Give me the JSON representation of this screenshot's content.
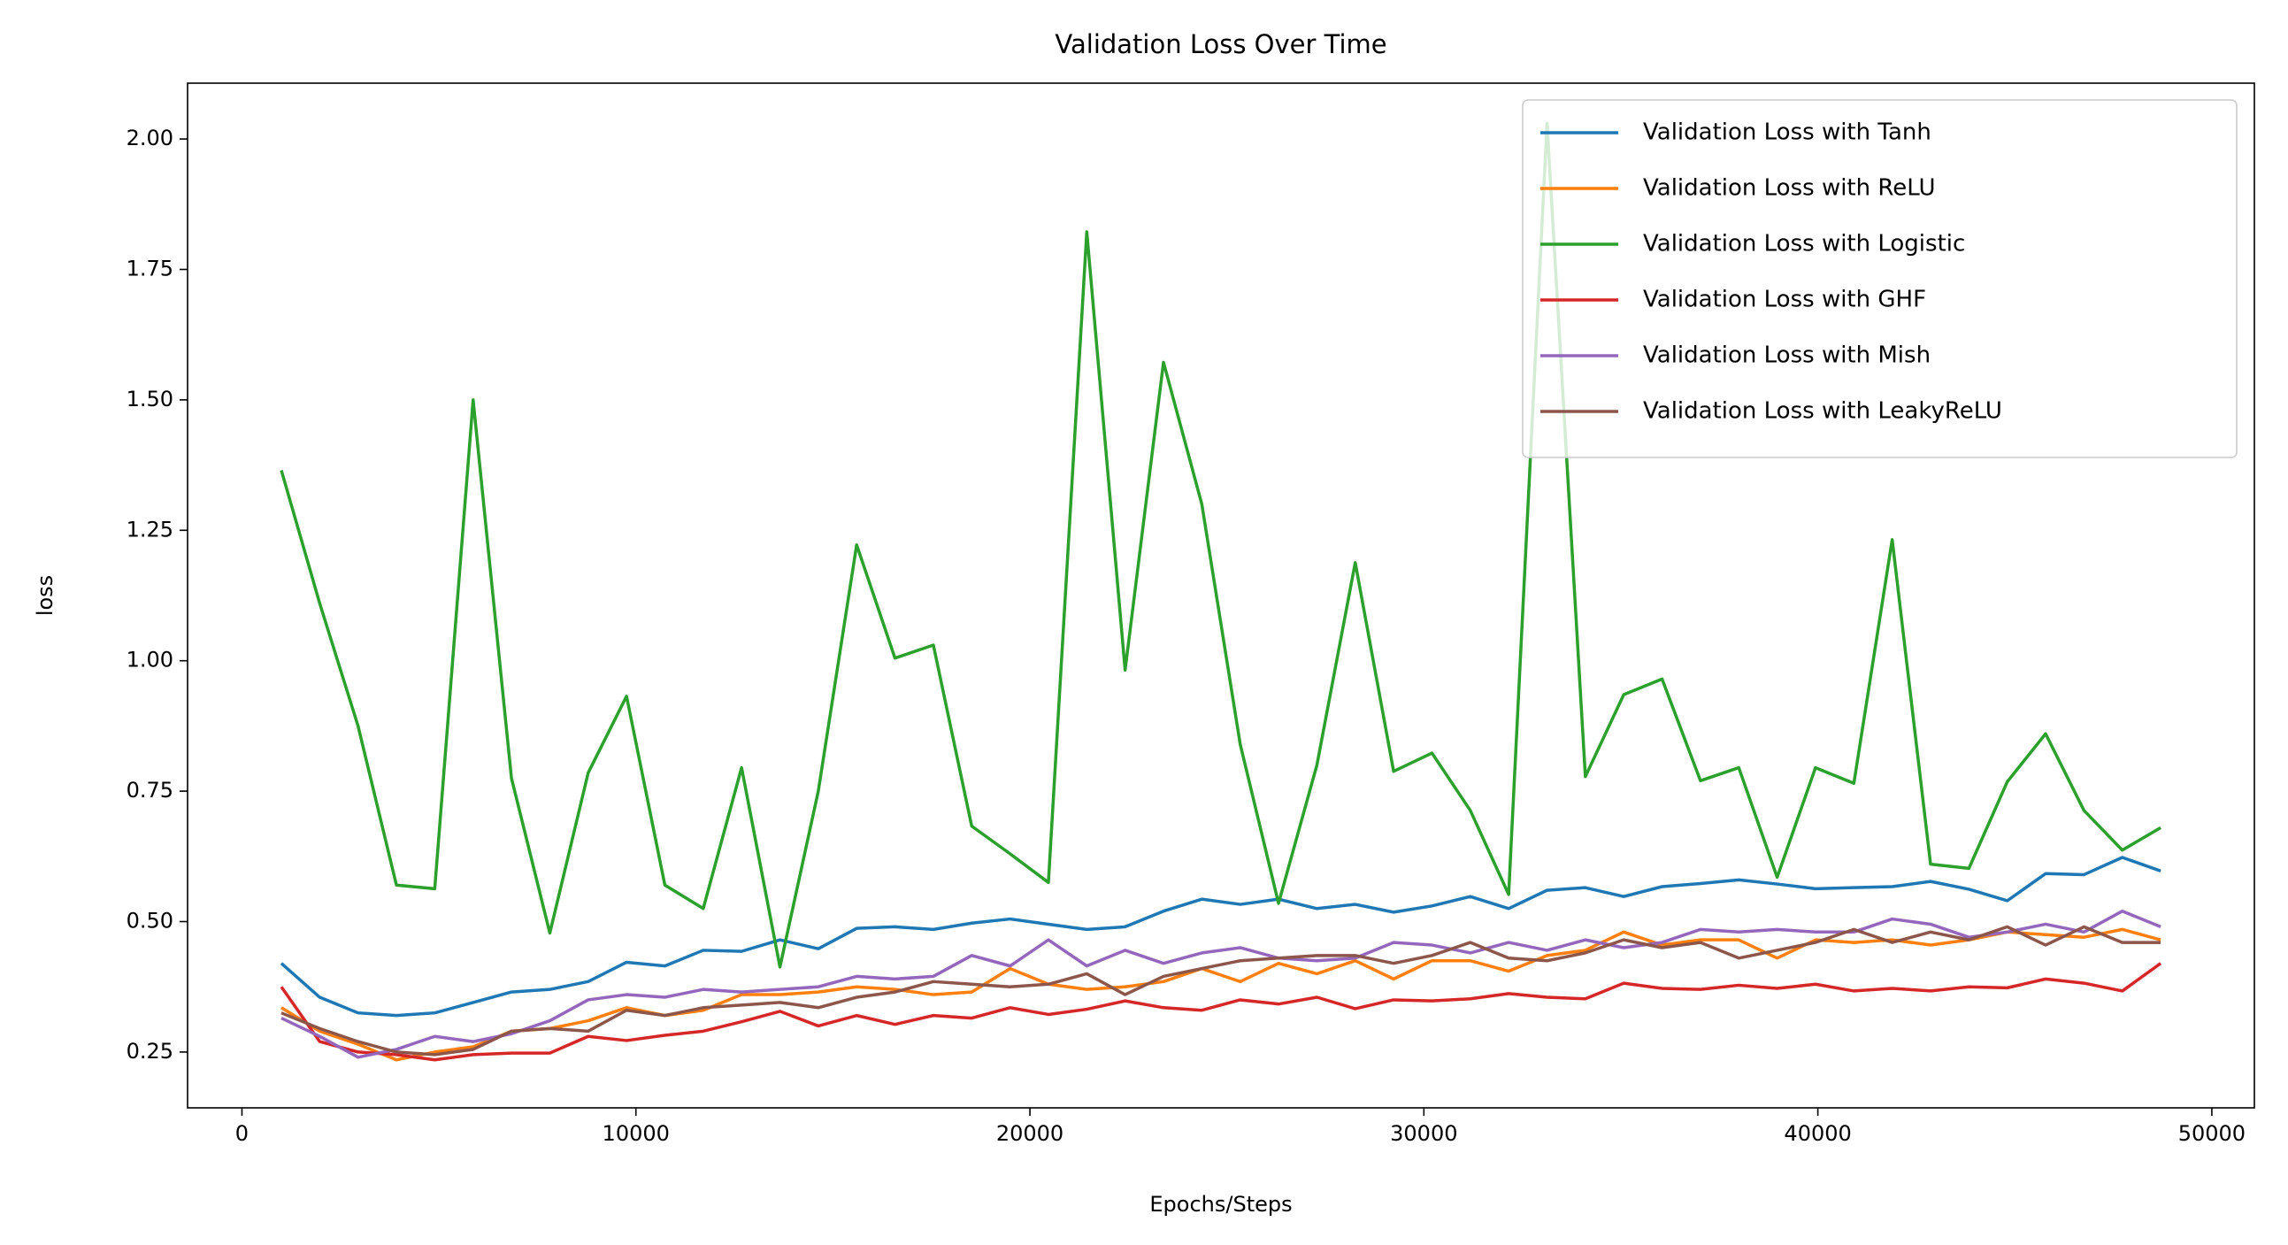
{
  "chart_data": {
    "type": "line",
    "title": "Validation Loss Over Time",
    "x_label": "Epochs/Steps",
    "y_label": "loss",
    "x": [
      1000,
      1974,
      2947,
      3921,
      4894,
      5868,
      6841,
      7815,
      8788,
      9762,
      10735,
      11709,
      12682,
      13656,
      14629,
      15603,
      16576,
      17550,
      18523,
      19497,
      20470,
      21444,
      22417,
      23391,
      24364,
      25338,
      26311,
      27285,
      28258,
      29232,
      30205,
      31179,
      32152,
      33126,
      34099,
      35073,
      36046,
      37020,
      37993,
      38967,
      39940,
      40914,
      41887,
      42861,
      43834,
      44808,
      45781,
      46755,
      47728,
      48702
    ],
    "series": [
      {
        "name": "Validation Loss with Tanh",
        "color": "#1f77b4",
        "values": [
          0.42,
          0.355,
          0.325,
          0.32,
          0.325,
          0.345,
          0.365,
          0.37,
          0.385,
          0.422,
          0.415,
          0.445,
          0.443,
          0.465,
          0.448,
          0.487,
          0.49,
          0.485,
          0.497,
          0.505,
          0.495,
          0.485,
          0.49,
          0.52,
          0.543,
          0.533,
          0.543,
          0.525,
          0.533,
          0.518,
          0.53,
          0.548,
          0.525,
          0.56,
          0.565,
          0.548,
          0.567,
          0.573,
          0.58,
          0.572,
          0.563,
          0.565,
          0.567,
          0.577,
          0.562,
          0.54,
          0.592,
          0.59,
          0.623,
          0.597
        ]
      },
      {
        "name": "Validation Loss with ReLU",
        "color": "#ff7f0e",
        "values": [
          0.335,
          0.29,
          0.265,
          0.235,
          0.25,
          0.26,
          0.29,
          0.295,
          0.31,
          0.335,
          0.32,
          0.33,
          0.36,
          0.36,
          0.365,
          0.375,
          0.37,
          0.36,
          0.365,
          0.41,
          0.38,
          0.37,
          0.375,
          0.385,
          0.41,
          0.385,
          0.42,
          0.4,
          0.425,
          0.39,
          0.425,
          0.425,
          0.405,
          0.435,
          0.445,
          0.48,
          0.455,
          0.465,
          0.465,
          0.43,
          0.465,
          0.46,
          0.465,
          0.455,
          0.465,
          0.48,
          0.475,
          0.47,
          0.485,
          0.465
        ]
      },
      {
        "name": "Validation Loss with Logistic",
        "color": "#2ca02c",
        "values": [
          1.365,
          1.11,
          0.875,
          0.57,
          0.563,
          1.5,
          0.775,
          0.478,
          0.785,
          0.932,
          0.57,
          0.525,
          0.795,
          0.413,
          0.75,
          1.222,
          1.005,
          1.03,
          0.683,
          0.63,
          0.575,
          1.822,
          0.982,
          1.572,
          1.3,
          0.84,
          0.535,
          0.8,
          1.188,
          0.788,
          0.823,
          0.713,
          0.552,
          2.03,
          0.778,
          0.935,
          0.965,
          0.77,
          0.795,
          0.585,
          0.795,
          0.765,
          1.232,
          0.61,
          0.602,
          0.768,
          0.86,
          0.713,
          0.637,
          0.68
        ]
      },
      {
        "name": "Validation Loss with GHF",
        "color": "#d62728",
        "values": [
          0.375,
          0.27,
          0.25,
          0.245,
          0.235,
          0.245,
          0.248,
          0.248,
          0.28,
          0.272,
          0.282,
          0.29,
          0.308,
          0.328,
          0.3,
          0.32,
          0.303,
          0.32,
          0.315,
          0.335,
          0.322,
          0.332,
          0.348,
          0.335,
          0.33,
          0.35,
          0.342,
          0.355,
          0.333,
          0.35,
          0.348,
          0.352,
          0.362,
          0.355,
          0.352,
          0.382,
          0.372,
          0.37,
          0.378,
          0.372,
          0.38,
          0.367,
          0.372,
          0.367,
          0.375,
          0.373,
          0.39,
          0.382,
          0.367,
          0.42
        ]
      },
      {
        "name": "Validation Loss with Mish",
        "color": "#9467bd",
        "values": [
          0.315,
          0.28,
          0.24,
          0.255,
          0.28,
          0.27,
          0.285,
          0.31,
          0.35,
          0.36,
          0.355,
          0.37,
          0.365,
          0.37,
          0.375,
          0.395,
          0.39,
          0.395,
          0.435,
          0.415,
          0.465,
          0.415,
          0.445,
          0.42,
          0.44,
          0.45,
          0.43,
          0.425,
          0.43,
          0.46,
          0.455,
          0.44,
          0.46,
          0.445,
          0.465,
          0.45,
          0.46,
          0.485,
          0.48,
          0.485,
          0.48,
          0.48,
          0.505,
          0.495,
          0.47,
          0.48,
          0.495,
          0.48,
          0.52,
          0.49
        ]
      },
      {
        "name": "Validation Loss with LeakyReLU",
        "color": "#8c564b",
        "values": [
          0.325,
          0.295,
          0.27,
          0.25,
          0.245,
          0.255,
          0.29,
          0.295,
          0.29,
          0.33,
          0.32,
          0.335,
          0.34,
          0.345,
          0.335,
          0.355,
          0.365,
          0.385,
          0.38,
          0.375,
          0.38,
          0.4,
          0.36,
          0.395,
          0.41,
          0.425,
          0.43,
          0.435,
          0.435,
          0.42,
          0.435,
          0.46,
          0.43,
          0.425,
          0.44,
          0.465,
          0.45,
          0.46,
          0.43,
          0.445,
          0.46,
          0.485,
          0.46,
          0.48,
          0.465,
          0.49,
          0.455,
          0.49,
          0.46,
          0.46
        ]
      }
    ],
    "xlim": [
      -1380,
      51080
    ],
    "ylim": [
      0.143,
      2.107
    ],
    "xticks": [
      0,
      10000,
      20000,
      30000,
      40000,
      50000
    ],
    "yticks": [
      {
        "value": 0.25,
        "label": "0.25"
      },
      {
        "value": 0.5,
        "label": "0.50"
      },
      {
        "value": 0.75,
        "label": "0.75"
      },
      {
        "value": 1.0,
        "label": "1.00"
      },
      {
        "value": 1.25,
        "label": "1.25"
      },
      {
        "value": 1.5,
        "label": "1.50"
      },
      {
        "value": 1.75,
        "label": "1.75"
      },
      {
        "value": 2.0,
        "label": "2.00"
      }
    ],
    "grid": false,
    "legend": "upper right"
  }
}
